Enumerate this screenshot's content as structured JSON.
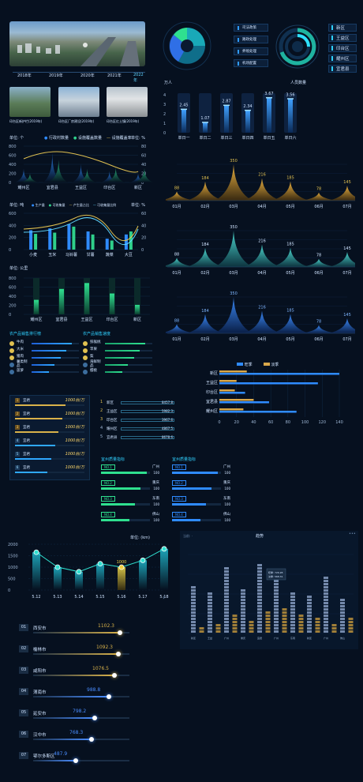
{
  "timeline": {
    "years": [
      "2018年",
      "2019年",
      "2020年",
      "2021年",
      "2022年"
    ]
  },
  "photos": [
    {
      "caption": "印台区新护栏(2019年)"
    },
    {
      "caption": "印台区厂房建设(2019年)"
    },
    {
      "caption": "印台区红土镇(2019年)"
    }
  ],
  "menu": [
    "司法政策",
    "路政处理",
    "养殖处理",
    "机场配置"
  ],
  "regions": [
    "新区",
    "王益区",
    "印台区",
    "耀州区",
    "宜君县"
  ],
  "people": {
    "unit": "万人",
    "title": "人员数量",
    "yticks": [
      "4",
      "3",
      "2",
      "1",
      "0"
    ],
    "bars": [
      {
        "label": "单日一",
        "value": 2.45
      },
      {
        "label": "单日二",
        "value": 1.07
      },
      {
        "label": "单日三",
        "value": 2.87
      },
      {
        "label": "单日四",
        "value": 2.34
      },
      {
        "label": "单日五",
        "value": 3.67
      },
      {
        "label": "单日六",
        "value": 3.56
      }
    ]
  },
  "chart1": {
    "unit_left": "单位: 个",
    "unit_right": "单位: %",
    "legend": [
      "行政村数量",
      "设施覆盖数量",
      "设施覆盖率"
    ],
    "yticks_left": [
      "800",
      "600",
      "400",
      "200",
      "0"
    ],
    "yticks_right": [
      "80",
      "60",
      "40",
      "20",
      "0"
    ],
    "categories": [
      "耀州区",
      "宜君县",
      "王益区",
      "印台区",
      "新区"
    ]
  },
  "chart2": {
    "unit_left": "单位: 吨",
    "unit_right": "单位: %",
    "legend": [
      "生产量",
      "可收集量",
      "产生量占比",
      "可收集量比例"
    ],
    "yticks_left": [
      "600",
      "400",
      "200",
      "0"
    ],
    "yticks_right": [
      "60",
      "40",
      "20",
      "0"
    ],
    "categories": [
      "小麦",
      "玉米",
      "马铃薯",
      "甘薯",
      "蔬菜",
      "大豆"
    ]
  },
  "chart3": {
    "unit": "单位: 公里",
    "yticks": [
      "800",
      "600",
      "400",
      "200",
      "0"
    ],
    "categories": [
      "耀州区",
      "宜君县",
      "王益区",
      "印台区",
      "新区"
    ],
    "values": [
      320,
      560,
      690,
      460,
      210
    ]
  },
  "peaks": {
    "months": [
      "01月",
      "02月",
      "03月",
      "04月",
      "05月",
      "06月",
      "07月"
    ],
    "values": [
      88,
      184,
      350,
      216,
      185,
      78,
      145
    ],
    "labels": [
      "88",
      "184",
      "350",
      "216",
      "185",
      "78",
      "145"
    ]
  },
  "rank_left": {
    "title": "农产品销售排行榜",
    "items": [
      "牛肉",
      "大米",
      "猪肉",
      "薯类制品",
      "菠萝"
    ]
  },
  "rank_right": {
    "title": "农产品销售速度",
    "items": [
      "猕猴桃",
      "苹果",
      "梨",
      "海鲜制品",
      "樱桃"
    ]
  },
  "hbar": {
    "legend": [
      "旺季",
      "淡季"
    ],
    "categories": [
      "新区",
      "王益区",
      "印台区",
      "宜君县",
      "耀州区"
    ],
    "xticks": [
      "0",
      "20",
      "40",
      "60",
      "80",
      "100",
      "120",
      "140"
    ],
    "peak": [
      140,
      115,
      30,
      58,
      90
    ],
    "off": [
      32,
      20,
      18,
      40,
      28
    ]
  },
  "list_left": {
    "items": [
      {
        "no": "1",
        "name": "宜君",
        "value": "1000台/万"
      },
      {
        "no": "2",
        "name": "宜君",
        "value": "1000台/万"
      },
      {
        "no": "3",
        "name": "宜君",
        "value": "1000台/万"
      },
      {
        "no": "4",
        "name": "宜君",
        "value": "1000台/万"
      },
      {
        "no": "5",
        "name": "宜君",
        "value": "1000台/万"
      },
      {
        "no": "6",
        "name": "宜君",
        "value": "1000台/万"
      }
    ]
  },
  "list_right": {
    "items": [
      {
        "no": "1",
        "name": "新区",
        "value": "8457.8"
      },
      {
        "no": "2",
        "name": "王益区",
        "value": "5982.3"
      },
      {
        "no": "3",
        "name": "印台区",
        "value": "3967.6"
      },
      {
        "no": "4",
        "name": "耀州区",
        "value": "4867.5"
      },
      {
        "no": "5",
        "name": "宜君县",
        "value": "8678.6"
      }
    ]
  },
  "progress": {
    "left_title": "宜州质量指标",
    "right_title": "宜州质量指标",
    "left": [
      {
        "tag": "NO.1",
        "city": "广州",
        "val": "100"
      },
      {
        "tag": "NO.2",
        "city": "重庆",
        "val": "100"
      },
      {
        "tag": "NO.3",
        "city": "东南",
        "val": "100"
      },
      {
        "tag": "NO.4",
        "city": "佛山",
        "val": "100"
      }
    ],
    "right": [
      {
        "tag": "NO.1",
        "city": "广州",
        "val": "100"
      },
      {
        "tag": "NO.2",
        "city": "重庆",
        "val": "100"
      },
      {
        "tag": "NO.3",
        "city": "东南",
        "val": "100"
      },
      {
        "tag": "NO.4",
        "city": "佛山",
        "val": "100"
      }
    ]
  },
  "line_chart": {
    "unit": "单位: (km)",
    "yticks": [
      "2000",
      "1500",
      "1000",
      "500",
      "0"
    ],
    "x": [
      "5.12",
      "5.13",
      "5.14",
      "5.15",
      "5.16",
      "5.17",
      "5.18"
    ],
    "values": [
      1650,
      1000,
      800,
      1150,
      1000,
      1300,
      1800
    ],
    "highlight": "1000"
  },
  "stacked": {
    "title": "趋势",
    "left_label": "当前: ·"
  },
  "cities": [
    {
      "no": "01",
      "name": "西安市",
      "value": "1102.3",
      "frac": 0.92,
      "color": "#d9b24a"
    },
    {
      "no": "02",
      "name": "榆林市",
      "value": "1092.3",
      "frac": 0.9,
      "color": "#d9b24a"
    },
    {
      "no": "03",
      "name": "咸阳市",
      "value": "1076.5",
      "frac": 0.86,
      "color": "#d9b24a"
    },
    {
      "no": "04",
      "name": "渭南市",
      "value": "988.8",
      "frac": 0.8,
      "color": "#4a8dff"
    },
    {
      "no": "05",
      "name": "延安市",
      "value": "798.2",
      "frac": 0.65,
      "color": "#4a8dff"
    },
    {
      "no": "06",
      "name": "汉中市",
      "value": "768.3",
      "frac": 0.62,
      "color": "#4a8dff"
    },
    {
      "no": "07",
      "name": "鄂尔多斯区",
      "value": "487.9",
      "frac": 0.45,
      "color": "#4a8dff"
    }
  ]
}
